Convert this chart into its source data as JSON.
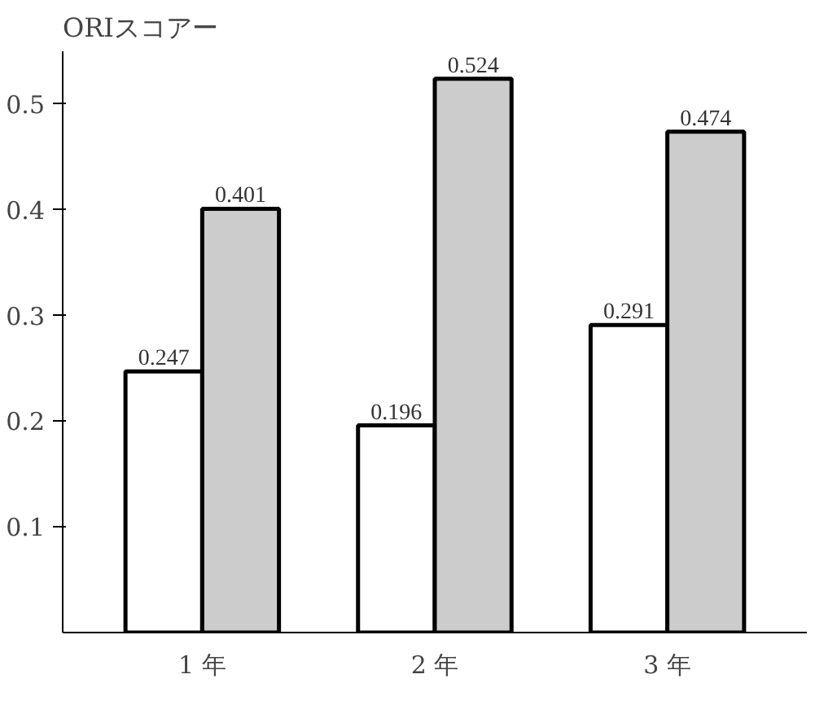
{
  "chart_data": {
    "type": "bar",
    "ylabel": "ORIスコアー",
    "categories": [
      "1 年",
      "2 年",
      "3 年"
    ],
    "series": [
      {
        "color": "#ffffff",
        "values": [
          0.247,
          0.196,
          0.291
        ]
      },
      {
        "color": "#cccccc",
        "values": [
          0.401,
          0.524,
          0.474
        ]
      }
    ],
    "ylim": [
      0,
      0.55
    ],
    "yticks": [
      0.1,
      0.2,
      0.3,
      0.4,
      0.5
    ],
    "grid": false,
    "data_labels": true
  }
}
